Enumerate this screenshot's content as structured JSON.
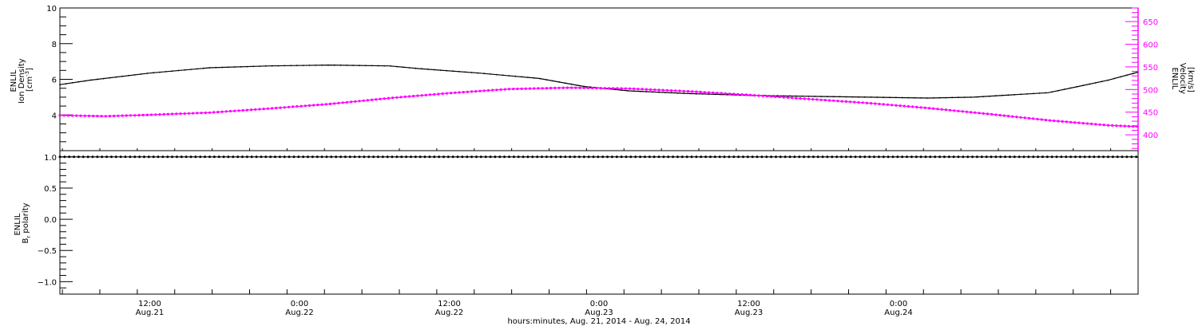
{
  "chart_data": [
    {
      "type": "line",
      "panel": "top",
      "ylabel": "ENLIL\nIon Density\n[cm⁻³]",
      "ylabel_lines": [
        "ENLIL",
        "Ion Density",
        "[cm",
        "-3",
        "]"
      ],
      "ylim": [
        2.0,
        10.0
      ],
      "yticks": [
        4,
        6,
        8,
        10
      ],
      "y2label_lines": [
        "ENLIL",
        "Velocity",
        "[km/s]"
      ],
      "y2lim": [
        365,
        680
      ],
      "y2ticks": [
        400,
        450,
        500,
        550,
        600,
        650
      ],
      "colors": {
        "density": "#000000",
        "velocity": "#ff00ff"
      },
      "series": [
        {
          "axis": "left",
          "color": "#000000",
          "x": [
            -0.3,
            -0.2,
            0.0,
            0.2,
            0.4,
            0.6,
            0.8,
            0.9,
            1.1,
            1.3,
            1.45,
            1.6,
            1.8,
            2.0,
            2.2,
            2.4,
            2.6,
            2.75,
            2.85,
            3.0,
            3.1,
            3.2,
            3.3
          ],
          "values": [
            5.7,
            5.95,
            6.35,
            6.65,
            6.75,
            6.8,
            6.75,
            6.6,
            6.35,
            6.05,
            5.6,
            5.35,
            5.2,
            5.1,
            5.05,
            5.0,
            4.95,
            5.0,
            5.1,
            5.25,
            5.6,
            5.95,
            6.4
          ]
        },
        {
          "axis": "right",
          "color": "#ff00ff",
          "x": [
            -0.3,
            -0.15,
            0.0,
            0.2,
            0.4,
            0.6,
            0.8,
            1.0,
            1.2,
            1.4,
            1.6,
            1.8,
            2.0,
            2.2,
            2.4,
            2.6,
            2.8,
            3.0,
            3.2,
            3.3
          ],
          "values": [
            443,
            441,
            444,
            449,
            458,
            468,
            481,
            492,
            501,
            504,
            502,
            496,
            488,
            479,
            470,
            459,
            446,
            432,
            421,
            418
          ]
        }
      ]
    },
    {
      "type": "line",
      "panel": "bottom",
      "ylabel_lines": [
        "ENLIL",
        "B",
        "r",
        " polarity"
      ],
      "ylim": [
        -1.2,
        1.1
      ],
      "yticks": [
        -1.0,
        -0.5,
        0.0,
        0.5,
        1.0
      ],
      "ytick_labels": [
        "−1.0",
        "−0.5",
        "0.0",
        "0.5",
        "1.0"
      ],
      "series": [
        {
          "color": "#000000",
          "x": [
            -0.3,
            3.3
          ],
          "values": [
            1.0,
            1.0
          ]
        }
      ]
    }
  ],
  "x_axis": {
    "range_days": [
      -0.3,
      3.3
    ],
    "ticks": [
      {
        "x": 0.0,
        "time": "12:00",
        "date": "Aug.21"
      },
      {
        "x": 0.5,
        "time": "0:00",
        "date": "Aug.22"
      },
      {
        "x": 1.0,
        "time": "12:00",
        "date": "Aug.22"
      },
      {
        "x": 1.5,
        "time": "0:00",
        "date": "Aug.23"
      },
      {
        "x": 2.0,
        "time": "12:00",
        "date": "Aug.23"
      },
      {
        "x": 2.5,
        "time": "0:00",
        "date": "Aug.24"
      }
    ],
    "xlabel": "hours:minutes, Aug. 21, 2014 - Aug. 24, 2014"
  }
}
